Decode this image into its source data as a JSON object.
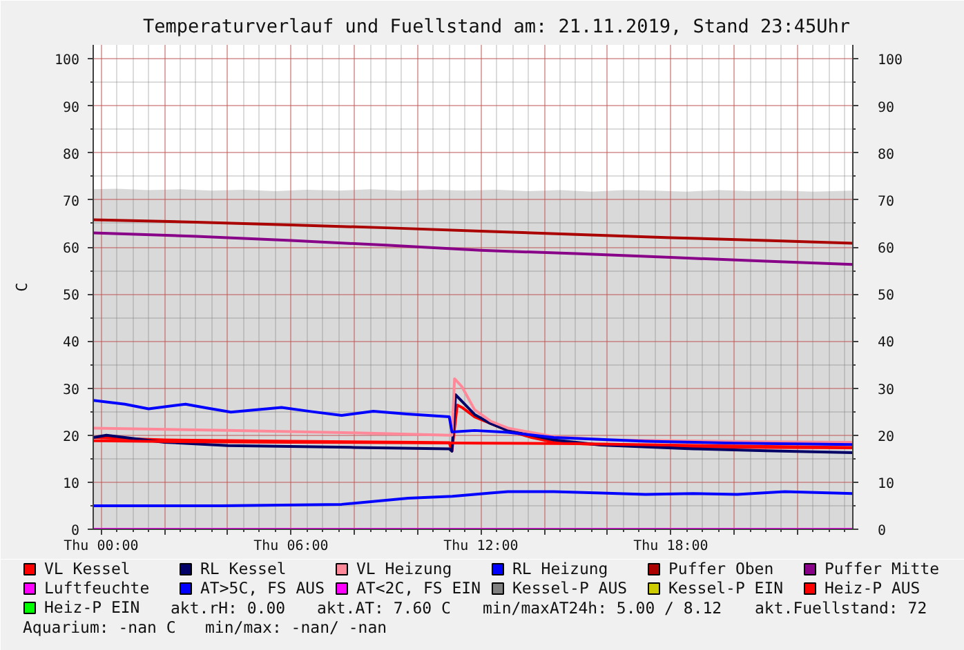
{
  "chart_data": {
    "type": "line",
    "title": "Temperaturverlauf und Fuellstand am: 21.11.2019, Stand 23:45Uhr",
    "ylabel": "C",
    "xlim": [
      "2019-11-20T23:45",
      "2019-11-21T23:45"
    ],
    "xticks": [
      {
        "value": "2019-11-21T00:00",
        "label": "Thu 00:00"
      },
      {
        "value": "2019-11-21T02:00",
        "label": null
      },
      {
        "value": "2019-11-21T04:00",
        "label": null
      },
      {
        "value": "2019-11-21T06:00",
        "label": "Thu 06:00"
      },
      {
        "value": "2019-11-21T08:00",
        "label": null
      },
      {
        "value": "2019-11-21T10:00",
        "label": null
      },
      {
        "value": "2019-11-21T12:00",
        "label": "Thu 12:00"
      },
      {
        "value": "2019-11-21T14:00",
        "label": null
      },
      {
        "value": "2019-11-21T16:00",
        "label": null
      },
      {
        "value": "2019-11-21T18:00",
        "label": "Thu 18:00"
      },
      {
        "value": "2019-11-21T20:00",
        "label": null
      },
      {
        "value": "2019-11-21T22:00",
        "label": null
      }
    ],
    "ylim": [
      0,
      103
    ],
    "yticks": [
      0,
      10,
      20,
      30,
      40,
      50,
      60,
      70,
      80,
      90,
      100
    ],
    "y2lim": [
      0,
      103
    ],
    "y2ticks": [
      0,
      10,
      20,
      30,
      40,
      50,
      60,
      70,
      80,
      90,
      100
    ],
    "grid": true,
    "legend": "bottom",
    "series": [
      {
        "name": "VL Kessel",
        "color": "#ff0000",
        "x": [
          "2019-11-20T23:45",
          "2019-11-21T02:00",
          "2019-11-21T06:00",
          "2019-11-21T10:00",
          "2019-11-21T11:00",
          "2019-11-21T11:05",
          "2019-11-21T11:15",
          "2019-11-21T11:24",
          "2019-11-21T11:48",
          "2019-11-21T12:18",
          "2019-11-21T12:51",
          "2019-11-21T13:36",
          "2019-11-21T14:18",
          "2019-11-21T16:00",
          "2019-11-21T18:00",
          "2019-11-21T21:00",
          "2019-11-21T23:45"
        ],
        "values": [
          19.5,
          19.0,
          18.7,
          18.5,
          18.4,
          16.6,
          26.4,
          25.9,
          23.9,
          22.5,
          21.0,
          19.5,
          18.5,
          17.9,
          17.6,
          17.4,
          17.3
        ]
      },
      {
        "name": "RL Kessel",
        "color": "#000066",
        "x": [
          "2019-11-20T23:45",
          "2019-11-21T00:10",
          "2019-11-21T02:00",
          "2019-11-21T04:00",
          "2019-11-21T08:00",
          "2019-11-21T11:00",
          "2019-11-21T11:05",
          "2019-11-21T11:12",
          "2019-11-21T11:48",
          "2019-11-21T12:18",
          "2019-11-21T12:51",
          "2019-11-21T14:18",
          "2019-11-21T15:48",
          "2019-11-21T18:42",
          "2019-11-21T21:00",
          "2019-11-21T23:45"
        ],
        "values": [
          19.5,
          20.0,
          18.5,
          17.8,
          17.4,
          17.1,
          16.6,
          28.6,
          24.4,
          22.5,
          21.0,
          19.0,
          17.9,
          17.1,
          16.7,
          16.3
        ]
      },
      {
        "name": "VL Heizung",
        "color": "#ff8899",
        "x": [
          "2019-11-20T23:45",
          "2019-11-21T04:00",
          "2019-11-21T08:00",
          "2019-11-21T11:00",
          "2019-11-21T11:05",
          "2019-11-21T11:10",
          "2019-11-21T11:24",
          "2019-11-21T11:48",
          "2019-11-21T12:18",
          "2019-11-21T12:51",
          "2019-11-21T14:18",
          "2019-11-21T16:00",
          "2019-11-21T18:00",
          "2019-11-21T21:00",
          "2019-11-21T23:45"
        ],
        "values": [
          21.5,
          21.0,
          20.5,
          20.0,
          20.0,
          32.0,
          30.3,
          25.4,
          23.0,
          21.5,
          19.7,
          19.0,
          18.8,
          18.6,
          18.5
        ]
      },
      {
        "name": "RL Heizung",
        "color": "#0000ff",
        "x": [
          "2019-11-20T23:45",
          "2019-11-21T00:45",
          "2019-11-21T01:30",
          "2019-11-21T02:40",
          "2019-11-21T03:20",
          "2019-11-21T04:06",
          "2019-11-21T05:42",
          "2019-11-21T06:40",
          "2019-11-21T07:36",
          "2019-11-21T08:36",
          "2019-11-21T09:40",
          "2019-11-21T11:00",
          "2019-11-21T11:05",
          "2019-11-21T11:48",
          "2019-11-21T12:51",
          "2019-11-21T14:18",
          "2019-11-21T17:12",
          "2019-11-21T20:00",
          "2019-11-21T23:45"
        ],
        "values": [
          27.4,
          26.6,
          25.6,
          26.6,
          25.8,
          24.9,
          25.9,
          25.0,
          24.2,
          25.1,
          24.5,
          23.9,
          20.7,
          21.0,
          20.6,
          19.5,
          18.7,
          18.3,
          18.0
        ]
      },
      {
        "name": "Puffer Oben",
        "color": "#aa0000",
        "x": [
          "2019-11-20T23:45",
          "2019-11-21T03:00",
          "2019-11-21T06:00",
          "2019-11-21T09:00",
          "2019-11-21T12:00",
          "2019-11-21T15:00",
          "2019-11-21T18:00",
          "2019-11-21T21:00",
          "2019-11-21T23:45"
        ],
        "values": [
          65.8,
          65.3,
          64.7,
          64.1,
          63.4,
          62.7,
          62.0,
          61.4,
          60.8
        ]
      },
      {
        "name": "Puffer Mitte",
        "color": "#880088",
        "x": [
          "2019-11-20T23:45",
          "2019-11-21T03:00",
          "2019-11-21T06:00",
          "2019-11-21T09:00",
          "2019-11-21T12:00",
          "2019-11-21T15:00",
          "2019-11-21T18:00",
          "2019-11-21T21:00",
          "2019-11-21T23:45"
        ],
        "values": [
          63.0,
          62.3,
          61.4,
          60.4,
          59.3,
          58.6,
          57.8,
          57.0,
          56.3
        ]
      },
      {
        "name": "Luftfeuchte",
        "color": "#ff00ff",
        "x": [
          "2019-11-20T23:45",
          "2019-11-21T23:45"
        ],
        "values": [
          0,
          0
        ]
      },
      {
        "name": "AT>5C, FS AUS",
        "color": "#0000ff",
        "x": [
          "2019-11-20T23:45",
          "2019-11-21T03:48",
          "2019-11-21T07:36",
          "2019-11-21T09:42",
          "2019-11-21T11:06",
          "2019-11-21T12:18",
          "2019-11-21T12:51",
          "2019-11-21T14:18",
          "2019-11-21T15:48",
          "2019-11-21T17:12",
          "2019-11-21T18:42",
          "2019-11-21T20:06",
          "2019-11-21T21:36",
          "2019-11-21T23:45"
        ],
        "values": [
          5.0,
          5.0,
          5.3,
          6.6,
          7.0,
          7.7,
          8.0,
          8.0,
          7.7,
          7.4,
          7.6,
          7.4,
          8.0,
          7.6
        ]
      },
      {
        "name": "AT<2C, FS EIN",
        "type": "area",
        "color": "#ff00ff"
      },
      {
        "name": "Kessel-P AUS",
        "type": "area",
        "color": "#808080",
        "x": [
          "2019-11-20T23:45",
          "2019-11-21T00:30",
          "2019-11-21T01:30",
          "2019-11-21T02:30",
          "2019-11-21T03:30",
          "2019-11-21T04:30",
          "2019-11-21T05:30",
          "2019-11-21T06:30",
          "2019-11-21T07:30",
          "2019-11-21T08:30",
          "2019-11-21T09:30",
          "2019-11-21T10:30",
          "2019-11-21T11:30",
          "2019-11-21T12:30",
          "2019-11-21T13:30",
          "2019-11-21T14:30",
          "2019-11-21T15:30",
          "2019-11-21T16:30",
          "2019-11-21T17:30",
          "2019-11-21T18:30",
          "2019-11-21T19:30",
          "2019-11-21T20:30",
          "2019-11-21T21:30",
          "2019-11-21T22:30",
          "2019-11-21T23:45"
        ],
        "values": [
          72.3,
          72.4,
          72.1,
          72.3,
          72.0,
          72.2,
          71.9,
          72.2,
          72.0,
          72.3,
          72.0,
          72.2,
          72.0,
          72.2,
          71.9,
          72.1,
          71.8,
          72.1,
          72.0,
          71.8,
          72.1,
          71.9,
          72.0,
          71.8,
          72.0
        ]
      },
      {
        "name": "Kessel-P EIN",
        "type": "area",
        "color": "#cccc00"
      },
      {
        "name": "Heiz-P AUS",
        "color": "#ff0000",
        "x": [
          "2019-11-20T23:45",
          "2019-11-21T03:00",
          "2019-11-21T06:00",
          "2019-11-21T09:00",
          "2019-11-21T12:00",
          "2019-11-21T15:00",
          "2019-11-21T18:00",
          "2019-11-21T21:00",
          "2019-11-21T23:45"
        ],
        "values": [
          18.8,
          18.6,
          18.5,
          18.4,
          18.3,
          18.2,
          17.9,
          17.6,
          17.4
        ]
      },
      {
        "name": "Heiz-P EIN",
        "type": "area",
        "color": "#00ff00"
      }
    ],
    "annotations": [
      "akt.rH: 0.00",
      "akt.AT: 7.60 C",
      "min/maxAT24h: 5.00 / 8.12",
      "akt.Fuellstand:    72",
      "Aquarium: -nan C",
      "min/max: -nan/ -nan"
    ]
  }
}
